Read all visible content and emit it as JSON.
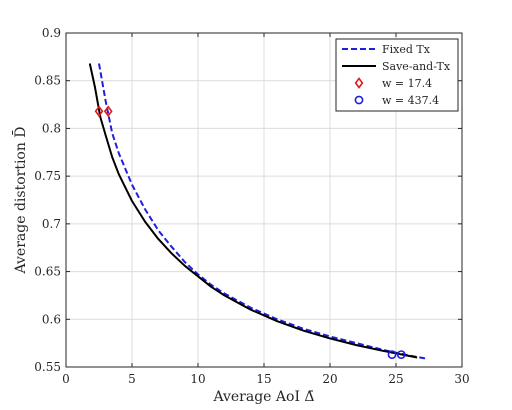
{
  "chart_data": {
    "type": "line",
    "xlabel": "Average AoI Δ̄",
    "ylabel": "Average distortion D̄",
    "xlim": [
      0,
      30
    ],
    "ylim": [
      0.55,
      0.9
    ],
    "xticks": [
      0,
      5,
      10,
      15,
      20,
      25,
      30
    ],
    "yticks": [
      0.55,
      0.6,
      0.65,
      0.7,
      0.75,
      0.8,
      0.85,
      0.9
    ],
    "x_tick_labels": [
      "0",
      "5",
      "10",
      "15",
      "20",
      "25",
      "30"
    ],
    "y_tick_labels": [
      "0.55",
      "0.6",
      "0.65",
      "0.7",
      "0.75",
      "0.8",
      "0.85",
      "0.9"
    ],
    "grid": true,
    "legend_position": "top-right",
    "series": [
      {
        "name": "Fixed Tx",
        "style": "dashed",
        "color": "#1f1fdd",
        "x": [
          2.5,
          3.0,
          3.5,
          4.0,
          5.0,
          6.0,
          7.0,
          8.0,
          9.0,
          10.0,
          11.0,
          12.0,
          14.0,
          16.0,
          18.0,
          20.0,
          22.0,
          24.0,
          26.0,
          27.2
        ],
        "y": [
          0.868,
          0.829,
          0.795,
          0.774,
          0.741,
          0.715,
          0.693,
          0.676,
          0.66,
          0.647,
          0.636,
          0.627,
          0.612,
          0.6,
          0.59,
          0.582,
          0.575,
          0.568,
          0.562,
          0.559
        ]
      },
      {
        "name": "Save-and-Tx",
        "style": "solid",
        "color": "#000000",
        "x": [
          1.8,
          2.2,
          2.6,
          3.0,
          3.5,
          4.0,
          5.0,
          6.0,
          7.0,
          8.0,
          9.0,
          10.0,
          11.0,
          12.0,
          14.0,
          16.0,
          18.0,
          20.0,
          22.0,
          24.0,
          26.6
        ],
        "y": [
          0.868,
          0.843,
          0.812,
          0.793,
          0.77,
          0.752,
          0.724,
          0.702,
          0.684,
          0.669,
          0.656,
          0.645,
          0.634,
          0.625,
          0.61,
          0.598,
          0.588,
          0.58,
          0.573,
          0.567,
          0.56
        ]
      }
    ],
    "markers": [
      {
        "name": "w = 17.4",
        "shape": "diamond",
        "color": "#dd1c1c",
        "x": [
          2.5,
          3.2
        ],
        "y": [
          0.818,
          0.818
        ]
      },
      {
        "name": "w = 437.4",
        "shape": "circle",
        "color": "#1f1fdd",
        "x": [
          24.7,
          25.4
        ],
        "y": [
          0.563,
          0.563
        ]
      }
    ]
  }
}
